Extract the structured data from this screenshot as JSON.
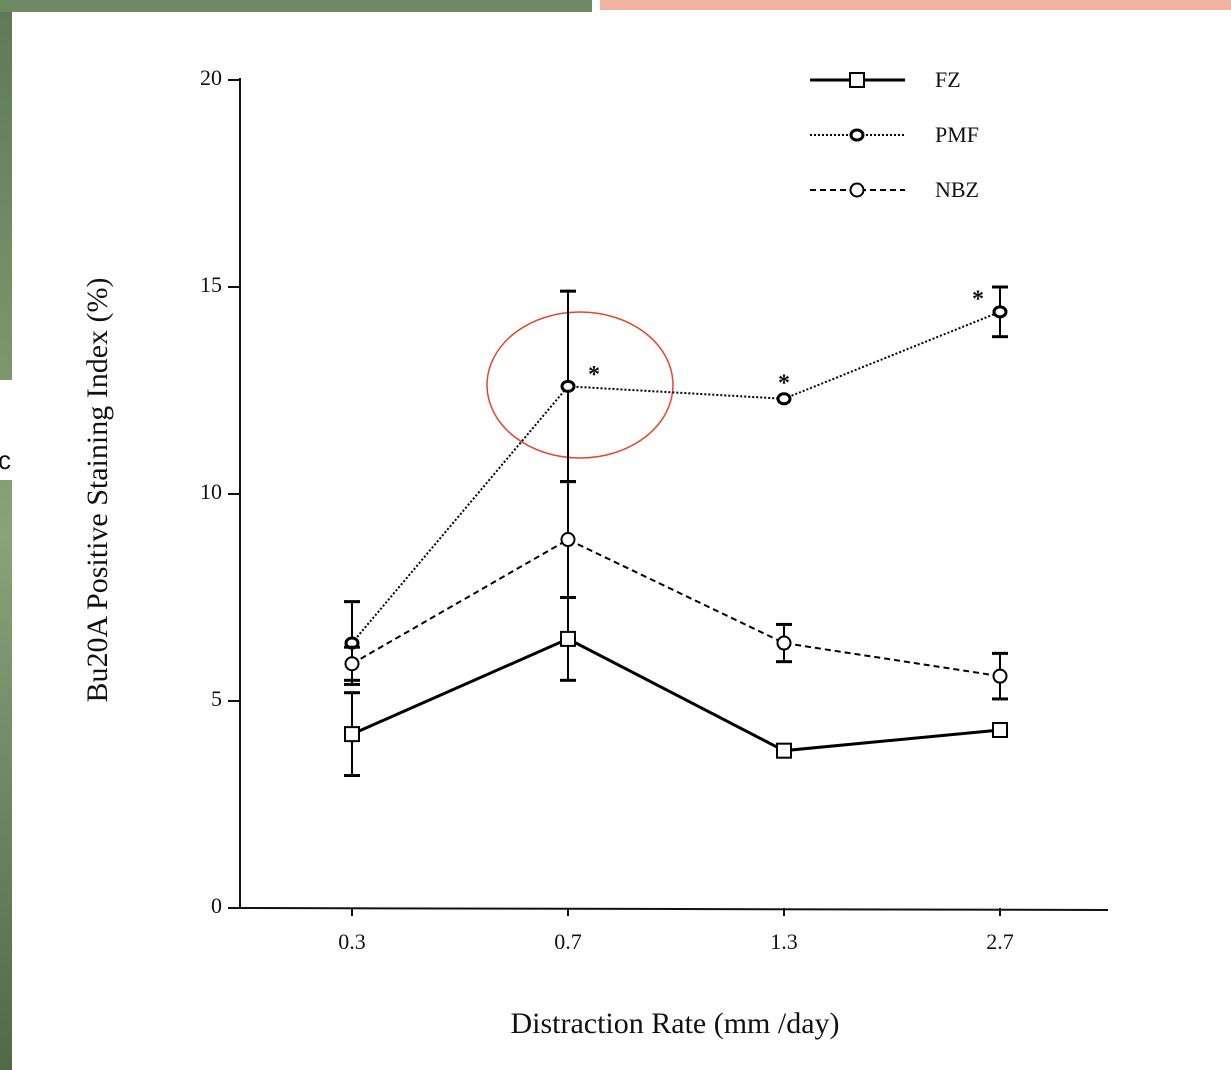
{
  "chart_data": {
    "type": "line",
    "x_label": "Distraction Rate (mm /day)",
    "y_label": "Bu20A Positive Staining Index (%)",
    "categories": [
      "0.3",
      "0.7",
      "1.3",
      "2.7"
    ],
    "ylim": [
      0,
      20
    ],
    "yticks": [
      0,
      5,
      10,
      15,
      20
    ],
    "series": [
      {
        "name": "FZ",
        "color": "#000000",
        "line_style": "solid",
        "marker": "square",
        "values": [
          4.2,
          6.5,
          3.8,
          4.3
        ],
        "errors": [
          1.0,
          1.0,
          null,
          null
        ],
        "annotations": [
          null,
          null,
          null,
          null
        ]
      },
      {
        "name": "PMF",
        "color": "#000000",
        "line_style": "dotted",
        "marker": "diamond",
        "values": [
          6.4,
          12.6,
          12.3,
          14.4
        ],
        "errors": [
          1.0,
          2.3,
          null,
          0.6
        ],
        "annotations": [
          null,
          "*",
          "*",
          "*"
        ]
      },
      {
        "name": "NBZ",
        "color": "#000000",
        "line_style": "dashed",
        "marker": "circle",
        "values": [
          5.9,
          8.9,
          6.4,
          5.6
        ],
        "errors": [
          0.4,
          1.4,
          0.45,
          0.55
        ],
        "annotations": [
          null,
          null,
          null,
          null
        ]
      }
    ],
    "legend": "top-right"
  },
  "slide_text": "c"
}
